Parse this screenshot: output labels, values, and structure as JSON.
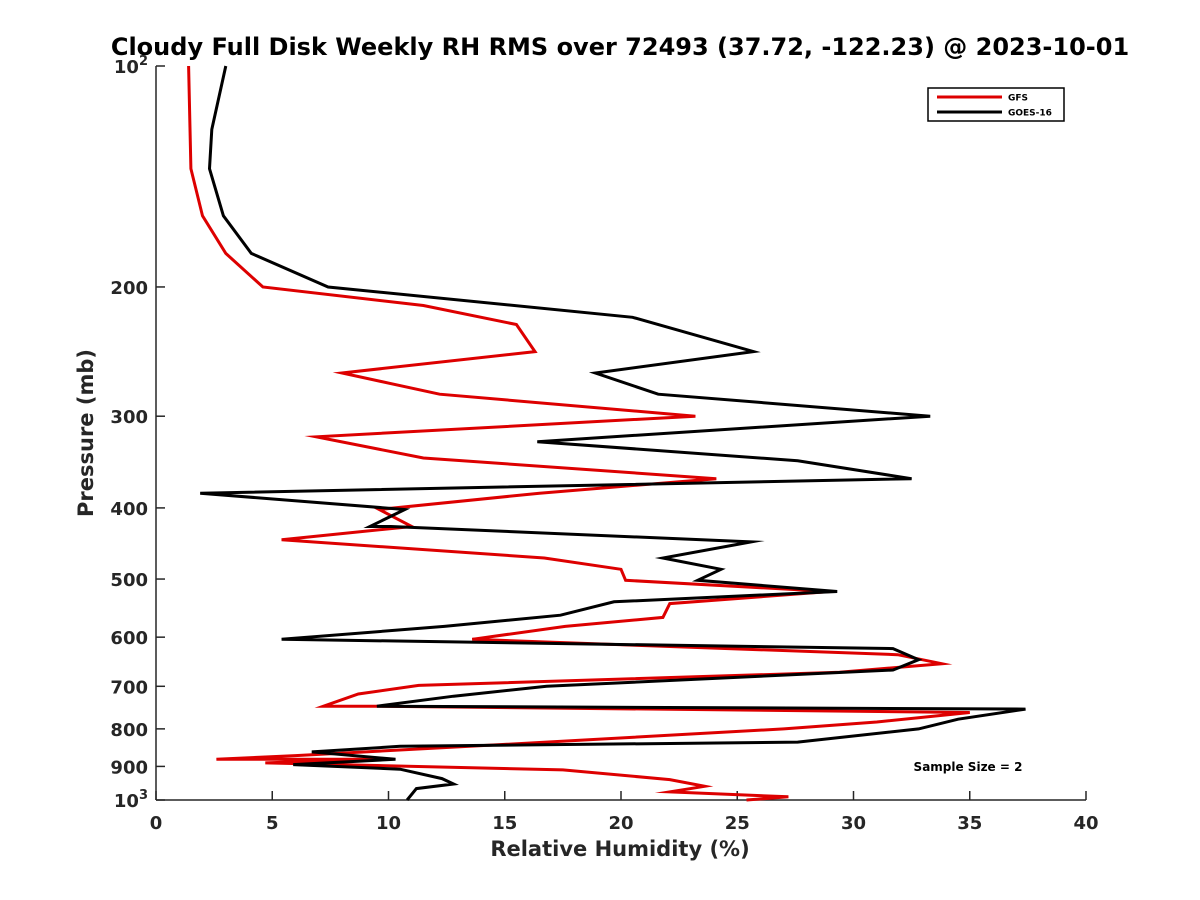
{
  "chart_data": {
    "type": "line",
    "title": "Cloudy Full Disk Weekly RH RMS over 72493 (37.72, -122.23) @ 2023-10-01",
    "xlabel": "Relative Humidity (%)",
    "ylabel": "Pressure (mb)",
    "xlim": [
      0,
      40
    ],
    "ylim": [
      100,
      1000
    ],
    "y_scale": "log",
    "y_reversed": true,
    "x_ticks": [
      "0",
      "5",
      "10",
      "15",
      "20",
      "25",
      "30",
      "35",
      "40"
    ],
    "y_ticks": [
      {
        "value": 100,
        "base": "10",
        "exp": "2"
      },
      {
        "value": 200,
        "label": "200"
      },
      {
        "value": 300,
        "label": "300"
      },
      {
        "value": 400,
        "label": "400"
      },
      {
        "value": 500,
        "label": "500"
      },
      {
        "value": 600,
        "label": "600"
      },
      {
        "value": 700,
        "label": "700"
      },
      {
        "value": 800,
        "label": "800"
      },
      {
        "value": 900,
        "label": "900"
      },
      {
        "value": 1000,
        "base": "10",
        "exp": "3"
      }
    ],
    "grid": false,
    "legend_position": "top-right",
    "annotation": "Sample Size = 2",
    "series": [
      {
        "name": "GFS",
        "color": "#dd0000",
        "points": [
          [
            1.4,
            100
          ],
          [
            1.5,
            138
          ],
          [
            2.0,
            160
          ],
          [
            3.0,
            180
          ],
          [
            4.6,
            200
          ],
          [
            11.5,
            212
          ],
          [
            15.5,
            225
          ],
          [
            16.3,
            245
          ],
          [
            8.0,
            262
          ],
          [
            12.2,
            280
          ],
          [
            23.2,
            300
          ],
          [
            6.9,
            320
          ],
          [
            11.5,
            342
          ],
          [
            24.1,
            365
          ],
          [
            16.5,
            382
          ],
          [
            9.6,
            402
          ],
          [
            11.0,
            424
          ],
          [
            5.4,
            442
          ],
          [
            16.7,
            468
          ],
          [
            20.0,
            485
          ],
          [
            20.2,
            502
          ],
          [
            29.0,
            520
          ],
          [
            22.1,
            540
          ],
          [
            21.8,
            564
          ],
          [
            17.6,
            580
          ],
          [
            13.6,
            604
          ],
          [
            31.9,
            634
          ],
          [
            33.8,
            652
          ],
          [
            29.4,
            670
          ],
          [
            11.3,
            698
          ],
          [
            8.7,
            717
          ],
          [
            7.2,
            745
          ],
          [
            9.6,
            745
          ],
          [
            35.0,
            760
          ],
          [
            31.0,
            783
          ],
          [
            27.0,
            800
          ],
          [
            15.0,
            840
          ],
          [
            6.0,
            870
          ],
          [
            2.6,
            880
          ],
          [
            9.6,
            880
          ],
          [
            4.7,
            890
          ],
          [
            17.5,
            910
          ],
          [
            22.1,
            938
          ],
          [
            23.6,
            958
          ],
          [
            22.1,
            975
          ],
          [
            27.2,
            990
          ],
          [
            25.4,
            1000
          ]
        ]
      },
      {
        "name": "GOES-16",
        "color": "#000000",
        "points": [
          [
            3.0,
            100
          ],
          [
            2.4,
            122
          ],
          [
            2.3,
            138
          ],
          [
            2.9,
            160
          ],
          [
            4.1,
            180
          ],
          [
            7.4,
            200
          ],
          [
            20.5,
            220
          ],
          [
            25.7,
            245
          ],
          [
            18.9,
            262
          ],
          [
            21.6,
            280
          ],
          [
            33.3,
            300
          ],
          [
            16.4,
            325
          ],
          [
            27.6,
            345
          ],
          [
            32.5,
            365
          ],
          [
            1.9,
            382
          ],
          [
            10.7,
            402
          ],
          [
            9.2,
            424
          ],
          [
            10.1,
            424
          ],
          [
            25.6,
            445
          ],
          [
            21.8,
            468
          ],
          [
            24.3,
            485
          ],
          [
            23.3,
            502
          ],
          [
            29.3,
            520
          ],
          [
            19.7,
            537
          ],
          [
            17.4,
            560
          ],
          [
            12.4,
            580
          ],
          [
            5.4,
            604
          ],
          [
            31.7,
            622
          ],
          [
            32.8,
            644
          ],
          [
            31.7,
            665
          ],
          [
            16.8,
            700
          ],
          [
            12.8,
            722
          ],
          [
            9.5,
            745
          ],
          [
            37.4,
            752
          ],
          [
            34.5,
            776
          ],
          [
            32.8,
            800
          ],
          [
            27.6,
            834
          ],
          [
            10.5,
            845
          ],
          [
            6.7,
            860
          ],
          [
            10.3,
            880
          ],
          [
            5.9,
            895
          ],
          [
            10.5,
            908
          ],
          [
            12.3,
            935
          ],
          [
            12.8,
            951
          ],
          [
            11.2,
            965
          ],
          [
            10.8,
            1000
          ]
        ]
      }
    ]
  }
}
